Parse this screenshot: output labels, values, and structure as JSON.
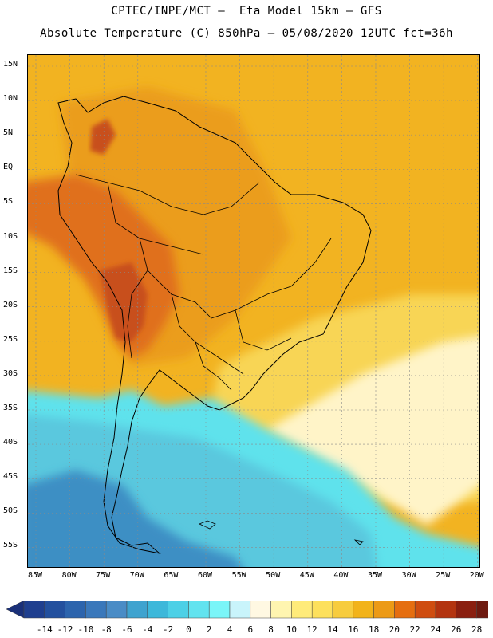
{
  "title_line1": "CPTEC/INPE/MCT –  Eta Model 15km – GFS",
  "title_line2": "Absolute Temperature (C) 850hPa – 05/08/2020 12UTC fct=36h",
  "lat_labels": [
    "15N",
    "10N",
    "5N",
    "EQ",
    "5S",
    "10S",
    "15S",
    "20S",
    "25S",
    "30S",
    "35S",
    "40S",
    "45S",
    "50S",
    "55S"
  ],
  "lon_labels": [
    "85W",
    "80W",
    "75W",
    "70W",
    "65W",
    "60W",
    "55W",
    "50W",
    "45W",
    "40W",
    "35W",
    "30W",
    "25W",
    "20W"
  ],
  "colorbar": {
    "labels": [
      "-14",
      "-12",
      "-10",
      "-8",
      "-6",
      "-4",
      "-2",
      "0",
      "2",
      "4",
      "6",
      "8",
      "10",
      "12",
      "14",
      "16",
      "18",
      "20",
      "22",
      "24",
      "26",
      "28"
    ],
    "colors": [
      "#1f3f8f",
      "#23509e",
      "#2c64ad",
      "#3a78bb",
      "#4a8cc6",
      "#3fa3cf",
      "#3db8da",
      "#4dd0e6",
      "#62e3ef",
      "#7af5f8",
      "#c9f4fb",
      "#fff8e2",
      "#fff5b0",
      "#ffeb7a",
      "#fde05c",
      "#f7cc3e",
      "#f2b31a",
      "#ec9a16",
      "#e56e10",
      "#cf4d10",
      "#b33410",
      "#8a1f10",
      "#6e1a10"
    ],
    "under_color": "#1a3079",
    "over_color": "#6a0f1c"
  },
  "palette": {
    "ocean_south": "#5ac8de",
    "cold_core": "#3c8fc4",
    "cold_band": "#7de6f0",
    "cyan_band": "#5ee2ec",
    "pale_band": "#fff4c8",
    "yellow_band": "#f8d555",
    "orange_main": "#f2b321",
    "orange_warm": "#eb9d1a",
    "hot": "#e0701c",
    "hotter": "#c8501a",
    "land_border": "#000000"
  }
}
